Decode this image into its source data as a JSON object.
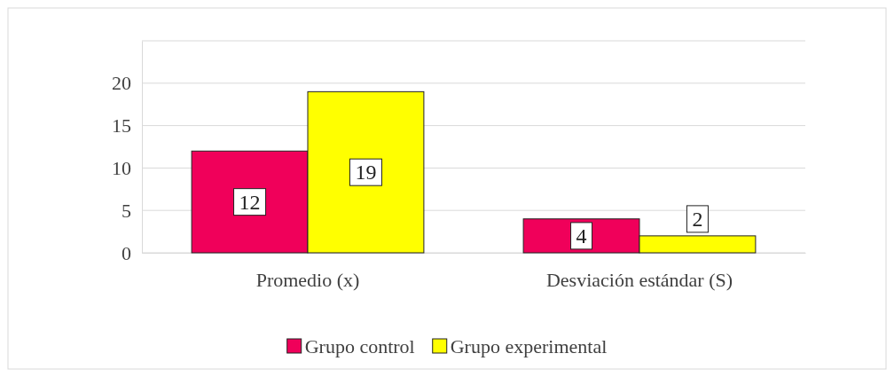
{
  "chart_data": {
    "type": "bar",
    "categories": [
      "Promedio (x)",
      "Desviación estándar (S)"
    ],
    "series": [
      {
        "name": "Grupo control",
        "color": "#f0005a",
        "values": [
          12,
          4
        ]
      },
      {
        "name": "Grupo experimental",
        "color": "#ffff00",
        "values": [
          19,
          2
        ]
      }
    ],
    "ylim": [
      0,
      25
    ],
    "yticks": [
      0,
      5,
      10,
      15,
      20,
      {
        "value": 25,
        "label": null
      }
    ],
    "grid": "y",
    "legend": "bottom",
    "data_labels": true
  }
}
